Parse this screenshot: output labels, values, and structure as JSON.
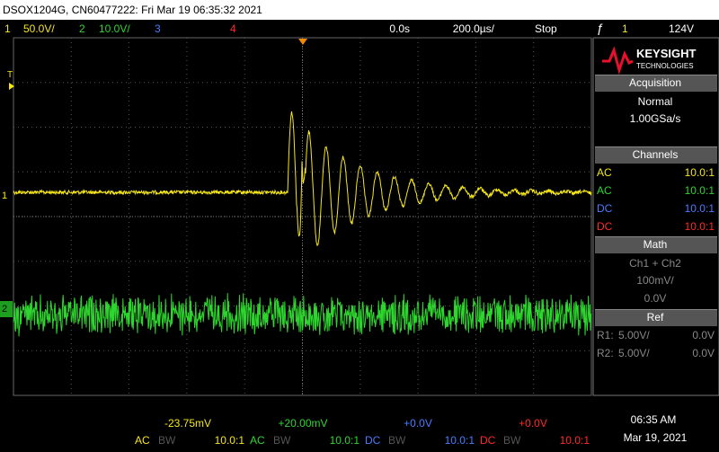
{
  "header": {
    "title": "DSOX1204G, CN60477222: Fri Mar 19 06:35:32 2021"
  },
  "status": {
    "channels": [
      {
        "number": "1",
        "scale": "50.0V/"
      },
      {
        "number": "2",
        "scale": "10.0V/"
      },
      {
        "number": "3"
      },
      {
        "number": "4"
      }
    ],
    "delay": "0.0s",
    "timebase": "200.0µs/",
    "run_state": "Stop",
    "trigger": {
      "source": "1",
      "level": "124V"
    }
  },
  "screen": {
    "trigger_marker": "T",
    "channel_markers": [
      "1",
      "2"
    ]
  },
  "side_panel": {
    "brand": "KEYSIGHT",
    "brand_sub": "TECHNOLOGIES",
    "acquisition": {
      "title": "Acquisition",
      "mode": "Normal",
      "rate": "1.00GSa/s"
    },
    "channels": {
      "title": "Channels",
      "rows": [
        [
          "AC",
          "10.0:1"
        ],
        [
          "AC",
          "10.0:1"
        ],
        [
          "DC",
          "10.0:1"
        ],
        [
          "DC",
          "10.0:1"
        ]
      ]
    },
    "math": {
      "title": "Math",
      "function": "Ch1 + Ch2",
      "scale": "100mV/",
      "offset": "0.0V"
    },
    "ref": {
      "title": "Ref",
      "rows": [
        [
          "R1:",
          "5.00V/",
          "0.0V"
        ],
        [
          "R2:",
          "5.00V/",
          "0.0V"
        ]
      ]
    }
  },
  "footer": {
    "channels": [
      {
        "offset": "-23.75mV",
        "coupling": "AC",
        "bw": "BW",
        "probe": "10.0:1"
      },
      {
        "offset": "+20.00mV",
        "coupling": "AC",
        "bw": "BW",
        "probe": "10.0:1"
      },
      {
        "offset": "+0.0V",
        "coupling": "DC",
        "bw": "BW",
        "probe": "10.0:1"
      },
      {
        "offset": "+0.0V",
        "coupling": "DC",
        "bw": "BW",
        "probe": "10.0:1"
      }
    ],
    "time": "06:35 AM",
    "date": "Mar 19, 2021"
  }
}
